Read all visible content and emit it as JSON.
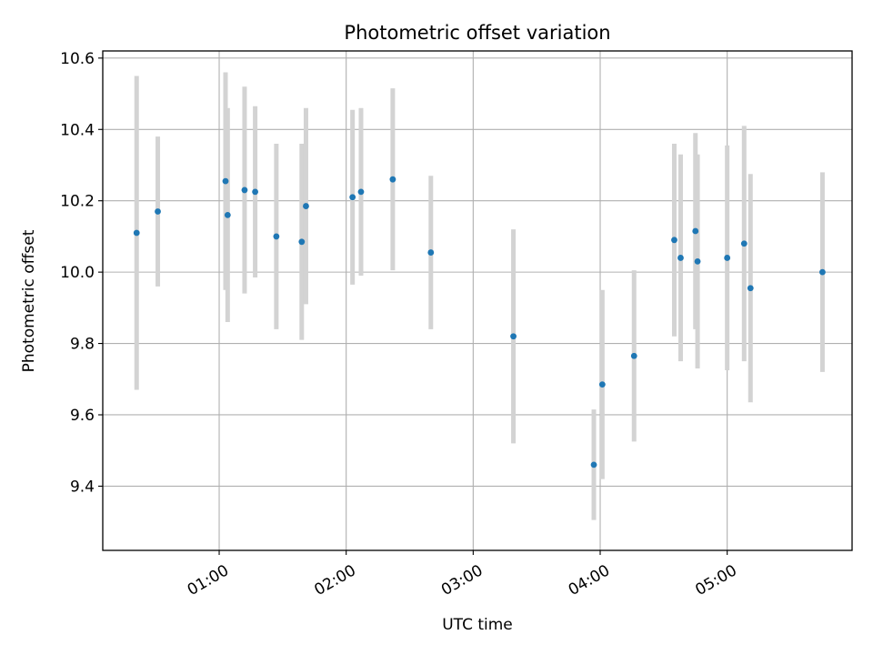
{
  "chart_data": {
    "type": "scatter",
    "title": "Photometric offset variation",
    "xlabel": "UTC time",
    "ylabel": "Photometric offset",
    "x_tick_labels": [
      "01:00",
      "02:00",
      "03:00",
      "04:00",
      "05:00"
    ],
    "x_tick_minutes": [
      60,
      120,
      180,
      240,
      300
    ],
    "y_tick_labels": [
      "9.4",
      "9.6",
      "9.8",
      "10.0",
      "10.2",
      "10.4",
      "10.6"
    ],
    "y_tick_values": [
      9.4,
      9.6,
      9.8,
      10.0,
      10.2,
      10.4,
      10.6
    ],
    "xlim": [
      "00:05",
      "05:59"
    ],
    "ylim": [
      9.22,
      10.62
    ],
    "grid": true,
    "colors": {
      "point": "#1f77b4",
      "errorbar": "#d3d3d3",
      "grid": "#b0b0b0"
    },
    "series": [
      {
        "x": [
          "00:21",
          "00:31",
          "01:03",
          "01:04",
          "01:12",
          "01:17",
          "01:27",
          "01:39",
          "01:41",
          "02:03",
          "02:07",
          "02:22",
          "02:40",
          "03:19",
          "03:57",
          "04:01",
          "04:16",
          "04:35",
          "04:38",
          "04:45",
          "04:46",
          "05:00",
          "05:08",
          "05:11",
          "05:45"
        ],
        "y": [
          10.11,
          10.17,
          10.255,
          10.16,
          10.23,
          10.225,
          10.1,
          10.085,
          10.185,
          10.21,
          10.225,
          10.26,
          10.055,
          9.82,
          9.46,
          9.685,
          9.765,
          10.09,
          10.04,
          10.115,
          10.03,
          10.04,
          10.08,
          9.955,
          10.0
        ],
        "err": [
          0.44,
          0.21,
          0.305,
          0.3,
          0.29,
          0.24,
          0.26,
          0.275,
          0.275,
          0.245,
          0.235,
          0.255,
          0.215,
          0.3,
          0.155,
          0.265,
          0.24,
          0.27,
          0.29,
          0.275,
          0.3,
          0.315,
          0.33,
          0.32,
          0.28
        ]
      }
    ]
  }
}
